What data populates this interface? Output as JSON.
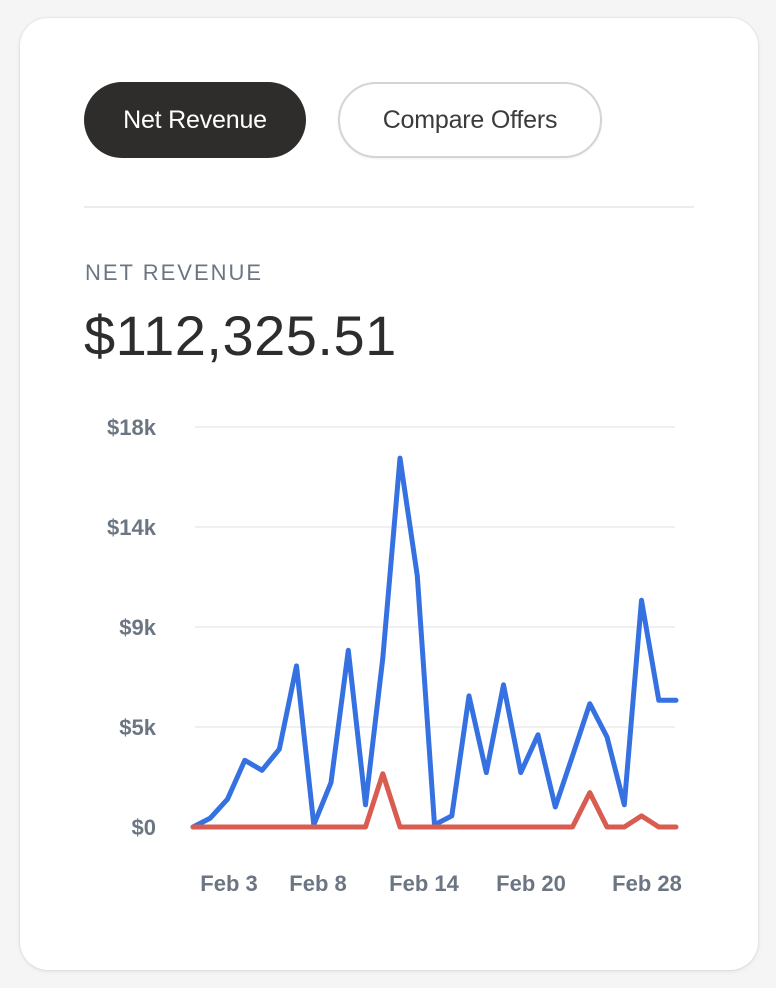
{
  "tabs": [
    {
      "label": "Net Revenue",
      "active": true
    },
    {
      "label": "Compare Offers",
      "active": false
    }
  ],
  "metric": {
    "label": "NET REVENUE",
    "value": "$112,325.51"
  },
  "colors": {
    "series_primary": "#3571e0",
    "series_secondary": "#d95c50",
    "gridline": "#ececec",
    "tab_active_bg": "#2f2d2b"
  },
  "chart_data": {
    "type": "line",
    "title": "",
    "xlabel": "",
    "ylabel": "",
    "ylim": [
      0,
      18000
    ],
    "grid": true,
    "y_ticks": [
      {
        "value": 0,
        "label": "$0"
      },
      {
        "value": 4500,
        "label": "$5k"
      },
      {
        "value": 9000,
        "label": "$9k"
      },
      {
        "value": 13500,
        "label": "$14k"
      },
      {
        "value": 18000,
        "label": "$18k"
      }
    ],
    "x_range": [
      1,
      29
    ],
    "x_ticks": [
      {
        "value": 3,
        "label": "Feb 3"
      },
      {
        "value": 8,
        "label": "Feb 8"
      },
      {
        "value": 14,
        "label": "Feb 14"
      },
      {
        "value": 20,
        "label": "Feb 20"
      },
      {
        "value": 28,
        "label": "Feb 28"
      }
    ],
    "x": [
      1,
      2,
      3,
      4,
      5,
      6,
      7,
      8,
      9,
      10,
      11,
      12,
      13,
      14,
      15,
      16,
      17,
      18,
      19,
      20,
      21,
      22,
      23,
      24,
      25,
      26,
      27,
      28,
      29
    ],
    "series": [
      {
        "color": "#3571e0",
        "values": [
          0,
          400,
          1250,
          3000,
          2550,
          3500,
          7250,
          100,
          2000,
          7950,
          1000,
          7600,
          16600,
          11300,
          100,
          500,
          5900,
          2450,
          6400,
          2450,
          4150,
          900,
          3200,
          5550,
          4050,
          1000,
          10200,
          5700,
          5700
        ]
      },
      {
        "color": "#d95c50",
        "values": [
          0,
          0,
          0,
          0,
          0,
          0,
          0,
          0,
          0,
          0,
          0,
          2400,
          0,
          0,
          0,
          0,
          0,
          0,
          0,
          0,
          0,
          0,
          0,
          1550,
          0,
          0,
          500,
          0,
          0
        ]
      }
    ]
  }
}
